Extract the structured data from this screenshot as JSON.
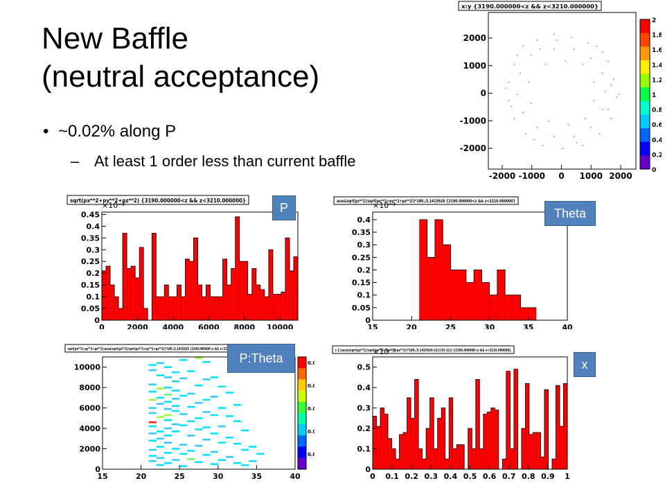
{
  "slide": {
    "title_line1": "New Baffle",
    "title_line2": "(neutral acceptance)",
    "bullet": "~0.02%  along P",
    "sub_bullet": "At least 1 order less than current baffle"
  },
  "labels": {
    "p": "P",
    "theta": "Theta",
    "ptheta": "P:Theta",
    "x": "x"
  },
  "colors": {
    "bar": "#ff0000",
    "frame": "#000000",
    "label_bg": "#4f81bd"
  },
  "chart_data": [
    {
      "id": "xy",
      "type": "scatter",
      "title": "x:y {3190.000000<z && z<3210.000000}",
      "xlim": [
        -2600,
        2600
      ],
      "ylim": [
        -2600,
        2600
      ],
      "x_ticks": [
        "-2000",
        "-1000",
        "0",
        "1000",
        "2000"
      ],
      "y_ticks": [
        "2000",
        "1000",
        "0",
        "-1000",
        "-2000"
      ],
      "colorbar_ticks": [
        "2",
        "1.8",
        "1.6",
        "1.4",
        "1.2",
        "1",
        "0.8",
        "0.6",
        "0.4",
        "0.2",
        "0"
      ],
      "points": [
        [
          -1400,
          1500
        ],
        [
          -900,
          1700
        ],
        [
          -300,
          1900
        ],
        [
          300,
          1800
        ],
        [
          900,
          1600
        ],
        [
          1400,
          1300
        ],
        [
          -1700,
          900
        ],
        [
          -1900,
          300
        ],
        [
          -1900,
          -300
        ],
        [
          -1700,
          -900
        ],
        [
          -1300,
          -1400
        ],
        [
          -700,
          -1800
        ],
        [
          0,
          -1900
        ],
        [
          700,
          -1800
        ],
        [
          1300,
          -1400
        ],
        [
          1700,
          -900
        ],
        [
          1900,
          -200
        ],
        [
          1800,
          400
        ],
        [
          1600,
          1000
        ],
        [
          -1100,
          1200
        ],
        [
          -1500,
          600
        ],
        [
          -1600,
          -100
        ],
        [
          -1400,
          -700
        ],
        [
          -900,
          -1200
        ],
        [
          -300,
          -1500
        ],
        [
          400,
          -1500
        ],
        [
          1000,
          -1200
        ],
        [
          1400,
          -600
        ],
        [
          1500,
          0
        ],
        [
          1400,
          600
        ],
        [
          1000,
          1100
        ],
        [
          400,
          1400
        ],
        [
          -300,
          1400
        ],
        [
          -800,
          1400
        ],
        [
          -1200,
          300
        ],
        [
          -1100,
          -400
        ],
        [
          -500,
          -1000
        ],
        [
          200,
          -1100
        ],
        [
          800,
          -900
        ],
        [
          1100,
          -300
        ],
        [
          1100,
          300
        ],
        [
          700,
          900
        ],
        [
          100,
          1000
        ],
        [
          -600,
          900
        ],
        [
          -1800,
          -500
        ],
        [
          -1000,
          -1600
        ],
        [
          500,
          -1700
        ],
        [
          1600,
          -600
        ],
        [
          1700,
          200
        ],
        [
          1200,
          1500
        ],
        [
          -200,
          1700
        ],
        [
          -1600,
          1200
        ],
        [
          2000,
          -100
        ],
        [
          -2000,
          100
        ]
      ]
    },
    {
      "id": "p",
      "type": "bar",
      "title": "sqrt(px**2+py**2+pz**2) {3190.000000<z && z<3210.000000}",
      "exponent": "×10⁻³",
      "xlim": [
        0,
        11000
      ],
      "ylim": [
        0,
        0.46
      ],
      "x_ticks": [
        "0",
        "2000",
        "4000",
        "6000",
        "8000",
        "10000"
      ],
      "y_ticks": [
        "0.45",
        "0.4",
        "0.35",
        "0.3",
        "0.25",
        "0.2",
        "0.15",
        "0.1",
        "0.05",
        "0"
      ],
      "values": [
        0.21,
        0.23,
        0.15,
        0.1,
        0.05,
        0.37,
        0.22,
        0.23,
        0.18,
        0.31,
        0.05,
        0,
        0.37,
        0.1,
        0.1,
        0.15,
        0.1,
        0.1,
        0.15,
        0.1,
        0.26,
        0.25,
        0.35,
        0.15,
        0.1,
        0.15,
        0.1,
        0.1,
        0.1,
        0.26,
        0.15,
        0.22,
        0.44,
        0.25,
        0.25,
        0.11,
        0.22,
        0.15,
        0.13,
        0.1,
        0.3,
        0.11,
        0.11,
        0.12,
        0.35,
        0.21,
        0.27
      ]
    },
    {
      "id": "theta",
      "type": "bar",
      "title": "acos(sqrt(pz**2)/sqrt(px**2+py**2+pz**2))*180./3.1415926 {3190.000000<z && z<3210.000000}",
      "exponent": "×10⁻³",
      "xlim": [
        15,
        40
      ],
      "ylim": [
        0,
        0.43
      ],
      "x_ticks": [
        "15",
        "20",
        "25",
        "30",
        "35",
        "40"
      ],
      "y_ticks": [
        "0.4",
        "0.35",
        "0.3",
        "0.25",
        "0.2",
        "0.15",
        "0.1",
        "0.05",
        "0"
      ],
      "bins": [
        21,
        22,
        23,
        24,
        25,
        26,
        27,
        28,
        29,
        30,
        31,
        32,
        33,
        34,
        35
      ],
      "values": [
        0.4,
        0.25,
        0.4,
        0.3,
        0.2,
        0.2,
        0.15,
        0.2,
        0.15,
        0.1,
        0.2,
        0.1,
        0.1,
        0.05,
        0.05
      ]
    },
    {
      "id": "ptheta",
      "type": "heatmap",
      "title": "sqrt(px**2+py**2+pz**2):acos(sqrt(pz**2)/sqrt(px**2+py**2+pz**2))*180./3.1415926 {3190.000000<z && z<3210.000000}",
      "xlim": [
        15,
        40
      ],
      "ylim": [
        0,
        11000
      ],
      "x_ticks": [
        "15",
        "20",
        "25",
        "30",
        "35",
        "40"
      ],
      "y_ticks": [
        "10000",
        "8000",
        "6000",
        "4000",
        "2000",
        "0"
      ],
      "colorbar_ticks": [
        "0.002",
        "0.002",
        "0.001",
        "0.001",
        "0.000"
      ],
      "cells": [
        [
          21,
          10200,
          1
        ],
        [
          21,
          9700,
          2
        ],
        [
          21,
          8300,
          2
        ],
        [
          21,
          7600,
          1
        ],
        [
          21,
          6800,
          3
        ],
        [
          21,
          6000,
          2
        ],
        [
          21,
          5500,
          2
        ],
        [
          21,
          4600,
          5
        ],
        [
          21,
          4200,
          1
        ],
        [
          21,
          3500,
          2
        ],
        [
          21,
          2800,
          1
        ],
        [
          21,
          1900,
          2
        ],
        [
          21,
          1300,
          1
        ],
        [
          21,
          800,
          2
        ],
        [
          22,
          10400,
          2
        ],
        [
          22,
          9200,
          1
        ],
        [
          22,
          7900,
          3
        ],
        [
          22,
          7000,
          1
        ],
        [
          22,
          6400,
          2
        ],
        [
          22,
          5100,
          3
        ],
        [
          22,
          3700,
          1
        ],
        [
          22,
          3000,
          2
        ],
        [
          22,
          2200,
          1
        ],
        [
          22,
          1100,
          2
        ],
        [
          22,
          400,
          1
        ],
        [
          23,
          10000,
          1
        ],
        [
          23,
          9000,
          2
        ],
        [
          23,
          8000,
          1
        ],
        [
          23,
          7300,
          4
        ],
        [
          23,
          6600,
          1
        ],
        [
          23,
          5900,
          2
        ],
        [
          23,
          5300,
          3
        ],
        [
          23,
          4800,
          1
        ],
        [
          23,
          4000,
          2
        ],
        [
          23,
          3300,
          1
        ],
        [
          23,
          2600,
          2
        ],
        [
          23,
          1600,
          1
        ],
        [
          23,
          600,
          1
        ],
        [
          24,
          9500,
          1
        ],
        [
          24,
          8600,
          2
        ],
        [
          24,
          7700,
          1
        ],
        [
          24,
          6900,
          2
        ],
        [
          24,
          6200,
          1
        ],
        [
          24,
          5700,
          1
        ],
        [
          24,
          4400,
          2
        ],
        [
          24,
          3700,
          1
        ],
        [
          24,
          2000,
          1
        ],
        [
          24,
          900,
          2
        ],
        [
          25,
          10700,
          1
        ],
        [
          25,
          8900,
          2
        ],
        [
          25,
          7200,
          1
        ],
        [
          25,
          5400,
          2
        ],
        [
          25,
          4300,
          1
        ],
        [
          25,
          2400,
          2
        ],
        [
          25,
          1500,
          1
        ],
        [
          25,
          300,
          1
        ],
        [
          26,
          9600,
          1
        ],
        [
          26,
          7400,
          2
        ],
        [
          26,
          6100,
          1
        ],
        [
          26,
          4700,
          1
        ],
        [
          26,
          3300,
          2
        ],
        [
          26,
          1800,
          1
        ],
        [
          26,
          1000,
          4
        ],
        [
          27,
          10900,
          3
        ],
        [
          27,
          8200,
          1
        ],
        [
          27,
          6500,
          2
        ],
        [
          27,
          5000,
          1
        ],
        [
          27,
          3900,
          1
        ],
        [
          27,
          2300,
          2
        ],
        [
          27,
          700,
          1
        ],
        [
          28,
          10500,
          1
        ],
        [
          28,
          8800,
          2
        ],
        [
          28,
          6800,
          1
        ],
        [
          28,
          5600,
          2
        ],
        [
          28,
          4100,
          1
        ],
        [
          28,
          2900,
          2
        ],
        [
          28,
          1400,
          1
        ],
        [
          29,
          9000,
          1
        ],
        [
          29,
          7100,
          2
        ],
        [
          29,
          5300,
          1
        ],
        [
          29,
          3500,
          1
        ],
        [
          29,
          1700,
          2
        ],
        [
          29,
          500,
          1
        ],
        [
          30,
          8100,
          1
        ],
        [
          30,
          6000,
          1
        ],
        [
          30,
          4200,
          2
        ],
        [
          30,
          2600,
          1
        ],
        [
          30,
          900,
          1
        ],
        [
          31,
          7500,
          1
        ],
        [
          31,
          5200,
          1
        ],
        [
          31,
          3100,
          1
        ],
        [
          31,
          1200,
          2
        ],
        [
          32,
          6300,
          1
        ],
        [
          32,
          4700,
          1
        ],
        [
          32,
          2500,
          1
        ],
        [
          32,
          600,
          1
        ],
        [
          33,
          3800,
          1
        ],
        [
          33,
          1900,
          1
        ],
        [
          33,
          400,
          1
        ],
        [
          34,
          2200,
          1
        ],
        [
          34,
          800,
          1
        ],
        [
          35,
          1500,
          1
        ]
      ]
    },
    {
      "id": "x",
      "type": "bar",
      "title": "(-1:(acos(sqrt(pz**2)/sqrt(px**2+py**2+pz**2))*180./3.1415926-21)/(35-21)) {3190.000000<z && z<3210.000000}",
      "exponent": "×10⁻³",
      "xlim": [
        0,
        1
      ],
      "ylim": [
        0,
        0.55
      ],
      "x_ticks": [
        "0",
        "0.1",
        "0.2",
        "0.3",
        "0.4",
        "0.5",
        "0.6",
        "0.7",
        "0.8",
        "0.9",
        "1"
      ],
      "y_ticks": [
        "0.5",
        "0.4",
        "0.3",
        "0.2",
        "0.1",
        "0"
      ],
      "values": [
        0.26,
        0.21,
        0.3,
        0.27,
        0.15,
        0.1,
        0.05,
        0.17,
        0.18,
        0.35,
        0.25,
        0.44,
        0.1,
        0.05,
        0.2,
        0.35,
        0.1,
        0.25,
        0.3,
        0.05,
        0.35,
        0.1,
        0.12,
        0.12,
        0,
        0.2,
        0.1,
        0.44,
        0.1,
        0.27,
        0.28,
        0.3,
        0.29,
        0,
        0.05,
        0.48,
        0.1,
        0.49,
        0,
        0.2,
        0.42,
        0.17,
        0.18,
        0.18,
        0.06,
        0.39,
        0,
        0.05,
        0.41,
        0.21,
        0.42
      ]
    }
  ]
}
